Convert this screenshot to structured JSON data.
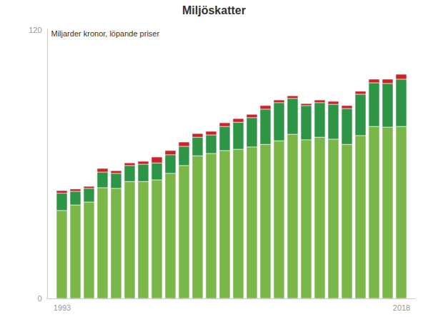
{
  "chart_data": {
    "type": "bar",
    "title": "Miljöskatter",
    "subtitle": "Miljarder kronor, löpande priser",
    "stacked": true,
    "grid": false,
    "categories": [
      "1993",
      null,
      null,
      null,
      null,
      null,
      null,
      null,
      null,
      null,
      null,
      null,
      null,
      null,
      null,
      null,
      null,
      null,
      null,
      null,
      null,
      null,
      null,
      null,
      null,
      "2018"
    ],
    "series": [
      {
        "color": "#7ab648",
        "values": [
          39.3,
          41.8,
          43.1,
          49.5,
          49.2,
          52.3,
          52.3,
          53.0,
          55.9,
          59.4,
          63.8,
          64.8,
          66.1,
          66.7,
          67.7,
          68.9,
          70.5,
          73.4,
          70.9,
          72.1,
          71.2,
          68.9,
          72.8,
          76.9,
          76.6,
          76.9
        ]
      },
      {
        "color": "#2e9446",
        "values": [
          7.7,
          6.1,
          6.1,
          7.0,
          6.7,
          7.1,
          7.7,
          7.6,
          8.3,
          8.6,
          8.3,
          8.3,
          10.8,
          12.1,
          13.1,
          15.7,
          17.0,
          16.0,
          15.3,
          15.4,
          15.6,
          16.0,
          18.5,
          19.5,
          19.5,
          21.1
        ]
      },
      {
        "color": "#cc2229",
        "values": [
          1.2,
          1.0,
          0.9,
          1.6,
          1.2,
          1.2,
          1.3,
          2.6,
          1.9,
          1.9,
          1.6,
          1.6,
          1.6,
          1.6,
          1.5,
          1.6,
          1.2,
          1.2,
          0.9,
          1.2,
          1.3,
          1.3,
          1.3,
          1.6,
          1.9,
          2.2
        ]
      }
    ],
    "ylim": [
      0,
      120
    ],
    "yticks": [
      0,
      120
    ]
  }
}
